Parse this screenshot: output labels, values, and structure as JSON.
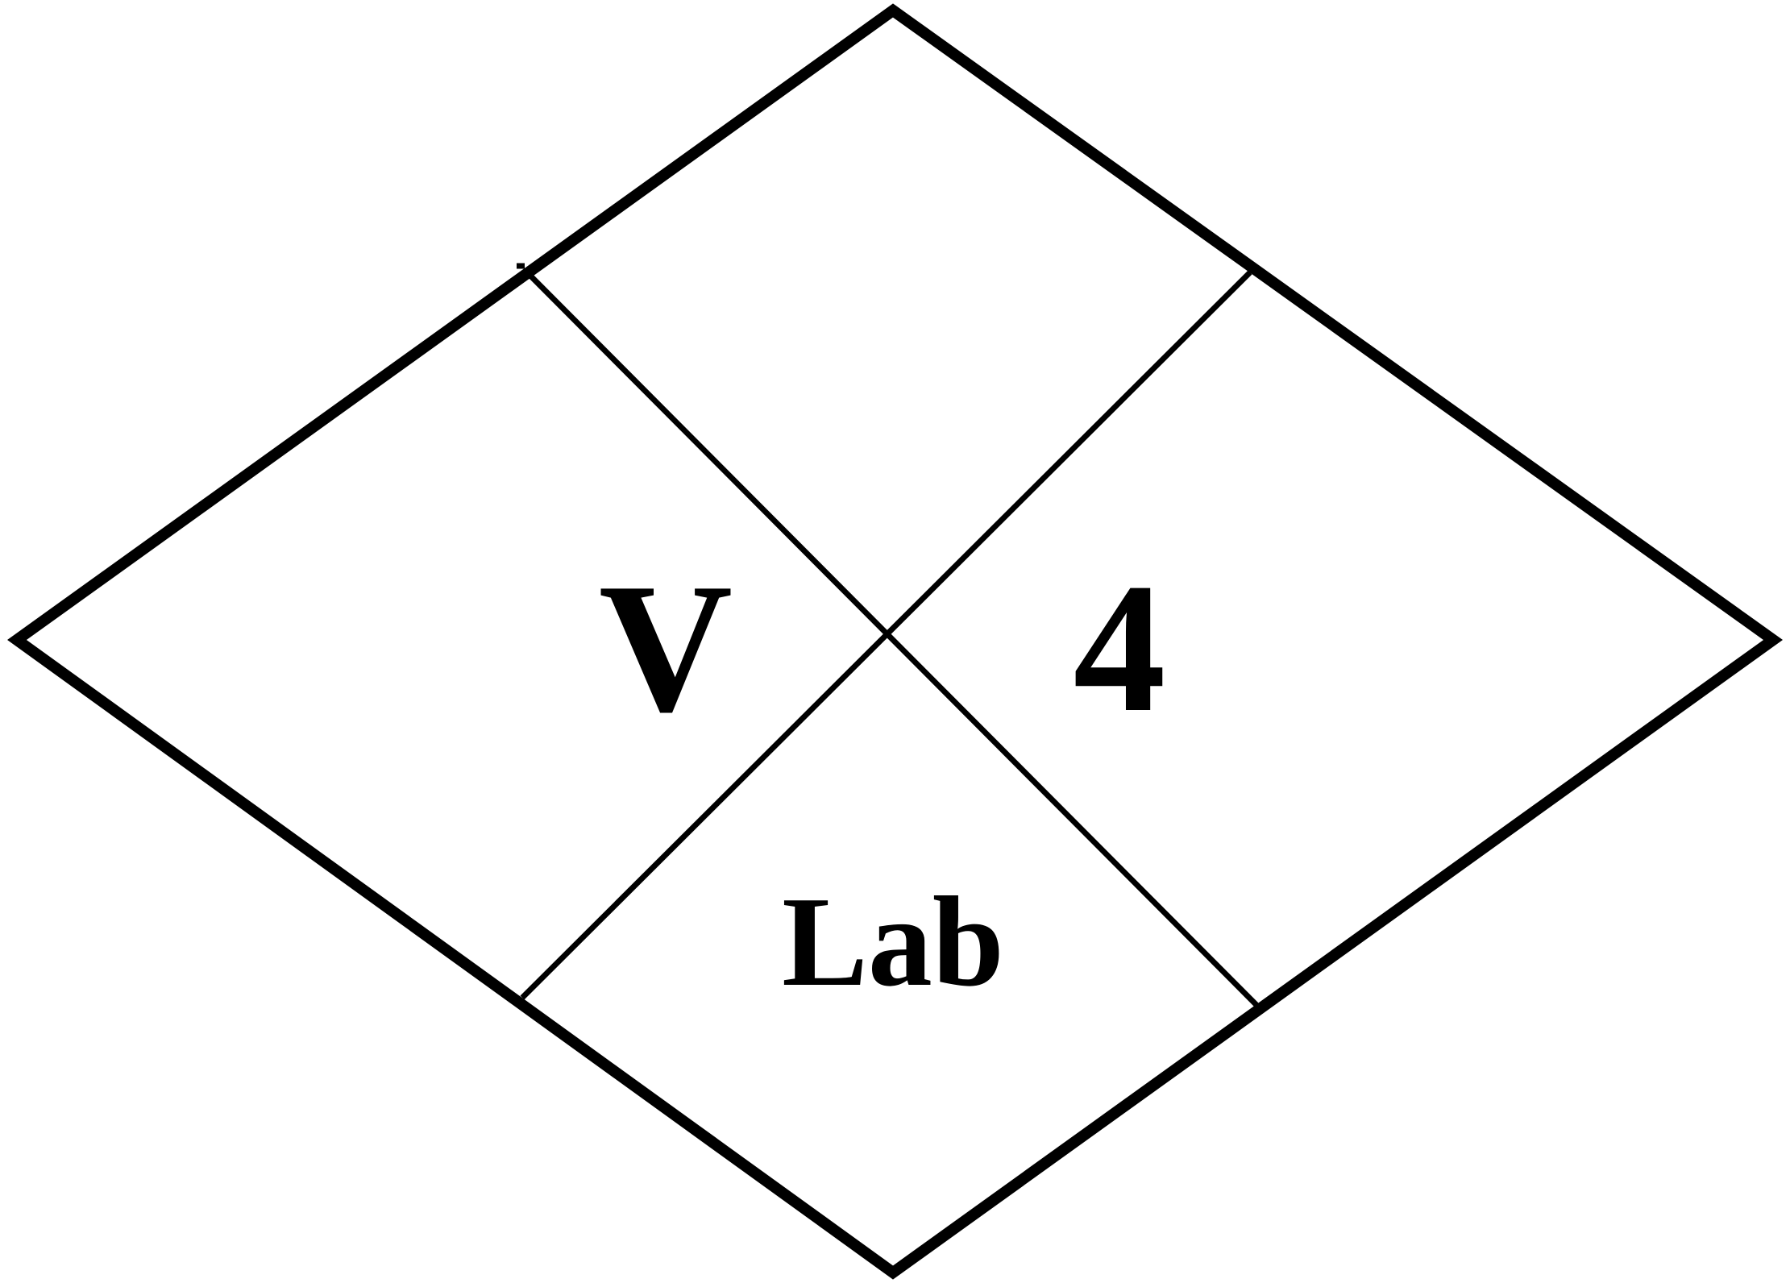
{
  "diagram": {
    "labels": {
      "left": "V",
      "right": "4",
      "bottom": "Lab"
    },
    "colors": {
      "stroke": "#000000",
      "background": "#ffffff"
    }
  }
}
